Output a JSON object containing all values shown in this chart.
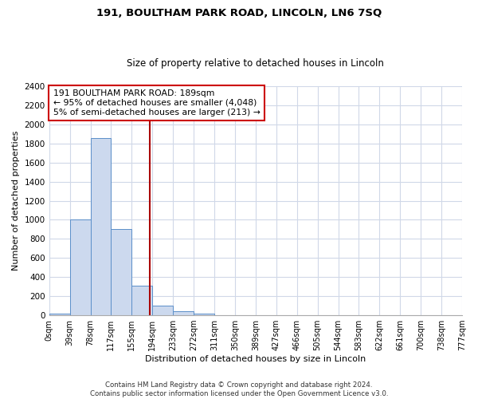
{
  "title": "191, BOULTHAM PARK ROAD, LINCOLN, LN6 7SQ",
  "subtitle": "Size of property relative to detached houses in Lincoln",
  "xlabel": "Distribution of detached houses by size in Lincoln",
  "ylabel": "Number of detached properties",
  "bar_values": [
    20,
    1000,
    1860,
    900,
    310,
    100,
    45,
    20,
    0,
    0,
    0,
    0,
    0,
    0,
    0,
    0,
    0,
    0,
    0,
    0
  ],
  "bar_labels": [
    "0sqm",
    "39sqm",
    "78sqm",
    "117sqm",
    "155sqm",
    "194sqm",
    "233sqm",
    "272sqm",
    "311sqm",
    "350sqm",
    "389sqm",
    "427sqm",
    "466sqm",
    "505sqm",
    "544sqm",
    "583sqm",
    "622sqm",
    "661sqm",
    "700sqm",
    "738sqm",
    "777sqm"
  ],
  "bar_color": "#ccd9ee",
  "bar_edge_color": "#5b8fc9",
  "vline_color": "#aa0000",
  "annotation_box_text": "191 BOULTHAM PARK ROAD: 189sqm\n← 95% of detached houses are smaller (4,048)\n5% of semi-detached houses are larger (213) →",
  "annotation_box_color": "#cc0000",
  "ylim": [
    0,
    2400
  ],
  "yticks": [
    0,
    200,
    400,
    600,
    800,
    1000,
    1200,
    1400,
    1600,
    1800,
    2000,
    2200,
    2400
  ],
  "grid_color": "#d0d8e8",
  "footer_text": "Contains HM Land Registry data © Crown copyright and database right 2024.\nContains public sector information licensed under the Open Government Licence v3.0.",
  "fig_width": 6.0,
  "fig_height": 5.0,
  "bg_color": "#ffffff",
  "title_fontsize": 9.5,
  "subtitle_fontsize": 8.5,
  "tick_fontsize": 7,
  "axis_label_fontsize": 8.0,
  "ann_fontsize": 7.8,
  "footer_fontsize": 6.2
}
